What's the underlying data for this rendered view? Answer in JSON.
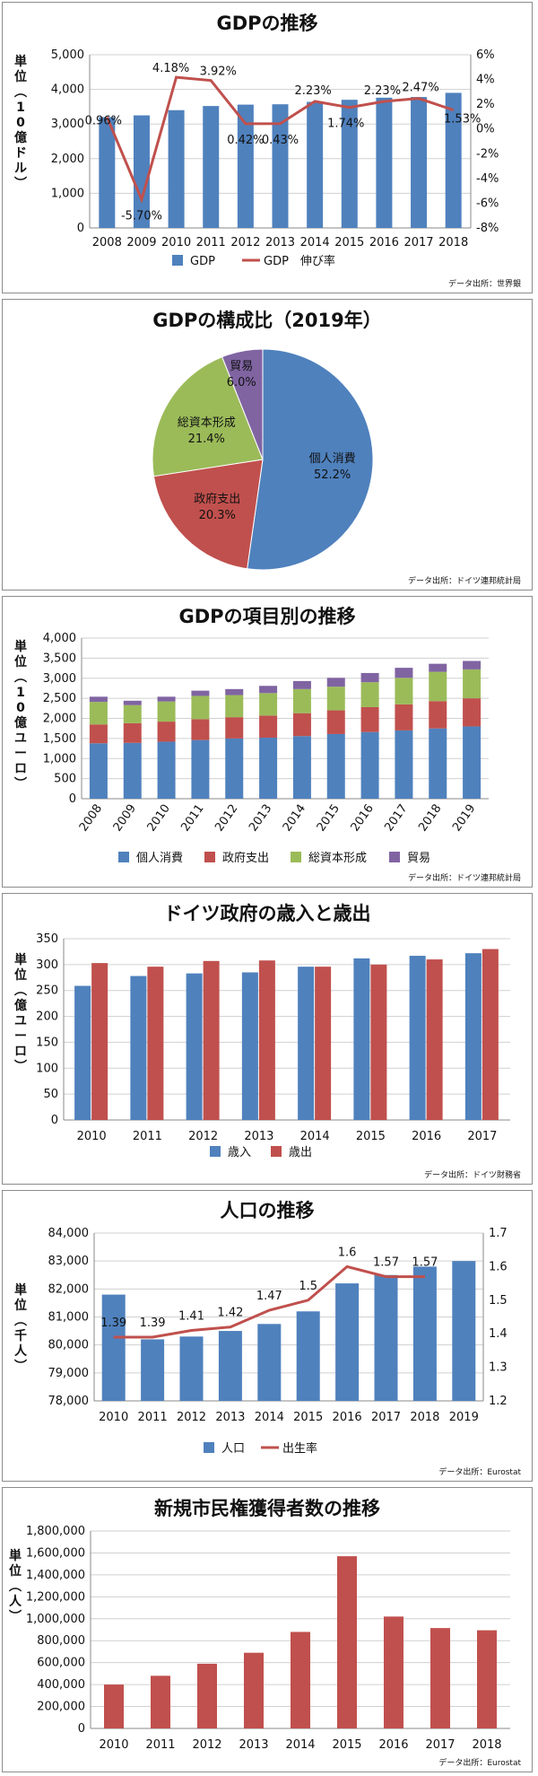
{
  "chart_data": [
    {
      "id": "gdp",
      "type": "bar",
      "title": "GDPの推移",
      "ylabel": "単位(10億ドル)",
      "y2label": "",
      "categories": [
        "2008",
        "2009",
        "2010",
        "2011",
        "2012",
        "2013",
        "2014",
        "2015",
        "2016",
        "2017",
        "2018"
      ],
      "series": [
        {
          "name": "GDP",
          "type": "bar",
          "axis": "left",
          "values": [
            3200,
            3250,
            3400,
            3520,
            3560,
            3570,
            3640,
            3700,
            3760,
            3780,
            3900
          ]
        },
        {
          "name": "GDP　伸び率",
          "type": "line",
          "axis": "right",
          "values": [
            0.96,
            -5.7,
            4.18,
            3.92,
            0.42,
            0.43,
            2.23,
            1.74,
            2.23,
            2.47,
            1.53
          ]
        }
      ],
      "data_labels": [
        "0.96%",
        "-5.70%",
        "4.18%",
        "3.92%",
        "0.42%",
        "0.43%",
        "2.23%",
        "1.74%",
        "2.23%",
        "2.47%",
        "1.53%"
      ],
      "y_ticks": [
        "0",
        "1,000",
        "2,000",
        "3,000",
        "4,000",
        "5,000"
      ],
      "y2_ticks": [
        "-8%",
        "-6%",
        "-4%",
        "-2%",
        "0%",
        "2%",
        "4%",
        "6%"
      ],
      "ylim": [
        0,
        5000
      ],
      "y2lim": [
        -8,
        6
      ],
      "legend_position": "bottom",
      "source": "データ出所：世界銀",
      "colors": {
        "bar": "#4f81bd",
        "line": "#c0504d"
      }
    },
    {
      "id": "composition",
      "type": "pie",
      "title": "GDPの構成比（2019年）",
      "slices": [
        {
          "label": "個人消費",
          "value": 52.2,
          "display": "52.2%",
          "color": "#4f81bd"
        },
        {
          "label": "政府支出",
          "value": 20.3,
          "display": "20.3%",
          "color": "#c0504d"
        },
        {
          "label": "総資本形成",
          "value": 21.4,
          "display": "21.4%",
          "color": "#9bbb59"
        },
        {
          "label": "貿易",
          "value": 6.0,
          "display": "6.0%",
          "color": "#8064a2"
        }
      ],
      "source": "データ出所：ドイツ連邦統計局"
    },
    {
      "id": "items",
      "type": "bar",
      "stacked": true,
      "title": "GDPの項目別の推移",
      "ylabel": "単位(10億ユーロ)",
      "categories": [
        "2008",
        "2009",
        "2010",
        "2011",
        "2012",
        "2013",
        "2014",
        "2015",
        "2016",
        "2017",
        "2018",
        "2019"
      ],
      "series": [
        {
          "name": "個人消費",
          "color": "#4f81bd",
          "values": [
            1380,
            1390,
            1420,
            1460,
            1500,
            1520,
            1560,
            1610,
            1660,
            1700,
            1750,
            1800
          ]
        },
        {
          "name": "政府支出",
          "color": "#c0504d",
          "values": [
            470,
            490,
            500,
            520,
            530,
            550,
            570,
            590,
            620,
            650,
            680,
            700
          ]
        },
        {
          "name": "総資本形成",
          "color": "#9bbb59",
          "values": [
            560,
            450,
            500,
            580,
            550,
            560,
            600,
            590,
            620,
            660,
            730,
            720
          ]
        },
        {
          "name": "貿易",
          "color": "#8064a2",
          "values": [
            130,
            110,
            120,
            130,
            150,
            180,
            200,
            220,
            230,
            250,
            200,
            210
          ]
        }
      ],
      "y_ticks": [
        "0",
        "500",
        "1,000",
        "1,500",
        "2,000",
        "2,500",
        "3,000",
        "3,500",
        "4,000"
      ],
      "ylim": [
        0,
        4000
      ],
      "legend_position": "bottom",
      "source": "データ出所：ドイツ連邦統計局"
    },
    {
      "id": "budget",
      "type": "bar",
      "title": "ドイツ政府の歳入と歳出",
      "ylabel": "単位(億ユーロ)",
      "categories": [
        "2010",
        "2011",
        "2012",
        "2013",
        "2014",
        "2015",
        "2016",
        "2017"
      ],
      "series": [
        {
          "name": "歳入",
          "color": "#4f81bd",
          "values": [
            259,
            278,
            283,
            285,
            296,
            312,
            317,
            322
          ]
        },
        {
          "name": "歳出",
          "color": "#c0504d",
          "values": [
            303,
            296,
            307,
            308,
            296,
            300,
            310,
            330
          ]
        }
      ],
      "y_ticks": [
        "0",
        "50",
        "100",
        "150",
        "200",
        "250",
        "300",
        "350"
      ],
      "ylim": [
        0,
        350
      ],
      "legend_position": "bottom",
      "source": "データ出所：ドイツ財務省"
    },
    {
      "id": "population",
      "type": "bar",
      "title": "人口の推移",
      "ylabel": "単位(千人)",
      "categories": [
        "2010",
        "2011",
        "2012",
        "2013",
        "2014",
        "2015",
        "2016",
        "2017",
        "2018",
        "2019"
      ],
      "series": [
        {
          "name": "人口",
          "type": "bar",
          "axis": "left",
          "values": [
            81800,
            80200,
            80300,
            80500,
            80750,
            81200,
            82200,
            82500,
            82800,
            83000
          ]
        },
        {
          "name": "出生率",
          "type": "line",
          "axis": "right",
          "values": [
            1.39,
            1.39,
            1.41,
            1.42,
            1.47,
            1.5,
            1.6,
            1.57,
            1.57,
            null
          ]
        }
      ],
      "data_labels": [
        "1.39",
        "1.39",
        "1.41",
        "1.42",
        "1.47",
        "1.5",
        "1.6",
        "1.57",
        "1.57",
        ""
      ],
      "y_ticks": [
        "78,000",
        "79,000",
        "80,000",
        "81,000",
        "82,000",
        "83,000",
        "84,000"
      ],
      "y2_ticks": [
        "1.2",
        "1.3",
        "1.4",
        "1.5",
        "1.6",
        "1.7"
      ],
      "ylim": [
        78000,
        84000
      ],
      "y2lim": [
        1.2,
        1.7
      ],
      "legend_position": "bottom",
      "source": "データ出所：Eurostat",
      "colors": {
        "bar": "#4f81bd",
        "line": "#c0504d"
      }
    },
    {
      "id": "citizenship",
      "type": "bar",
      "title": "新規市民権獲得者数の推移",
      "ylabel": "単位(人)",
      "categories": [
        "2010",
        "2011",
        "2012",
        "2013",
        "2014",
        "2015",
        "2016",
        "2017",
        "2018"
      ],
      "series": [
        {
          "name": "",
          "color": "#c0504d",
          "values": [
            400000,
            480000,
            590000,
            690000,
            880000,
            1570000,
            1020000,
            915000,
            895000
          ]
        }
      ],
      "y_ticks": [
        "0",
        "200,000",
        "400,000",
        "600,000",
        "800,000",
        "1,000,000",
        "1,200,000",
        "1,400,000",
        "1,600,000",
        "1,800,000"
      ],
      "ylim": [
        0,
        1800000
      ],
      "source": "データ出所：Eurostat"
    }
  ]
}
